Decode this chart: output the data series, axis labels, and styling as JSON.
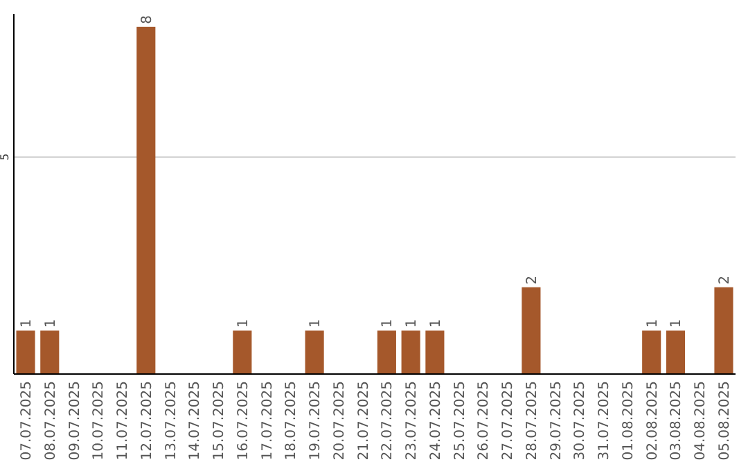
{
  "chart_data": {
    "type": "bar",
    "categories": [
      "07.07.2025",
      "08.07.2025",
      "09.07.2025",
      "10.07.2025",
      "11.07.2025",
      "12.07.2025",
      "13.07.2025",
      "14.07.2025",
      "15.07.2025",
      "16.07.2025",
      "17.07.2025",
      "18.07.2025",
      "19.07.2025",
      "20.07.2025",
      "21.07.2025",
      "22.07.2025",
      "23.07.2025",
      "24.07.2025",
      "25.07.2025",
      "26.07.2025",
      "27.07.2025",
      "28.07.2025",
      "29.07.2025",
      "30.07.2025",
      "31.07.2025",
      "01.08.2025",
      "02.08.2025",
      "03.08.2025",
      "04.08.2025",
      "05.08.2025"
    ],
    "values": [
      1,
      1,
      0,
      0,
      0,
      8,
      0,
      0,
      0,
      1,
      0,
      0,
      1,
      0,
      0,
      1,
      1,
      1,
      0,
      0,
      0,
      2,
      0,
      0,
      0,
      0,
      1,
      1,
      0,
      2
    ],
    "color": "#a5582b",
    "ylim": [
      0,
      8.3
    ],
    "yticks": [
      5
    ],
    "grid": "y",
    "value_labels": [
      "1",
      "1",
      null,
      null,
      null,
      "8",
      null,
      null,
      null,
      "1",
      null,
      null,
      "1",
      null,
      null,
      "1",
      "1",
      "1",
      null,
      null,
      null,
      "2",
      null,
      null,
      null,
      null,
      "1",
      "1",
      null,
      "2"
    ]
  }
}
